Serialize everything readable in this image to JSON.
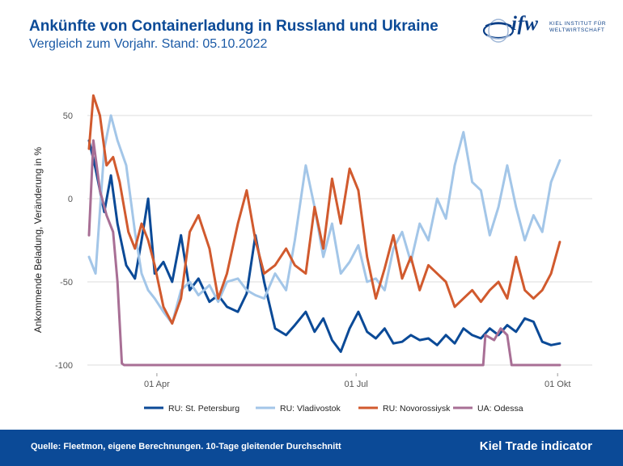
{
  "header": {
    "title": "Ankünfte von Containerladung in Russland und Ukraine",
    "subtitle": "Vergleich zum Vorjahr. Stand: 05.10.2022"
  },
  "logo": {
    "wordmark": "ifw",
    "line1": "KIEL INSTITUT FÜR",
    "line2": "WELTWIRTSCHAFT"
  },
  "footer": {
    "source": "Quelle: Fleetmon, eigene Berechnungen. 10-Tage gleitender Durchschnitt",
    "brand": "Kiel Trade indicator"
  },
  "colors": {
    "title": "#0b4a97",
    "footer_bg": "#0b4a97",
    "grid": "#dedede"
  },
  "chart_data": {
    "type": "line",
    "ylabel": "Ankommende Beladung, Veränderung in %",
    "xlabel": "",
    "x_range": [
      "2022-03-01",
      "2022-10-05"
    ],
    "ylim": [
      -105,
      65
    ],
    "y_ticks": [
      50,
      0,
      -50,
      -100
    ],
    "x_ticks": [
      {
        "date": "2022-04-01",
        "label": "01 Apr"
      },
      {
        "date": "2022-07-01",
        "label": "01 Jul"
      },
      {
        "date": "2022-10-01",
        "label": "01 Okt"
      }
    ],
    "grid": true,
    "legend_position": "bottom",
    "series": [
      {
        "name": "RU: St. Petersburg",
        "color": "#0b4a97",
        "points": [
          [
            "2022-03-01",
            35
          ],
          [
            "2022-03-04",
            18
          ],
          [
            "2022-03-08",
            -8
          ],
          [
            "2022-03-11",
            14
          ],
          [
            "2022-03-14",
            -15
          ],
          [
            "2022-03-18",
            -40
          ],
          [
            "2022-03-22",
            -48
          ],
          [
            "2022-03-25",
            -25
          ],
          [
            "2022-03-28",
            0
          ],
          [
            "2022-03-31",
            -45
          ],
          [
            "2022-04-04",
            -38
          ],
          [
            "2022-04-08",
            -50
          ],
          [
            "2022-04-12",
            -22
          ],
          [
            "2022-04-16",
            -55
          ],
          [
            "2022-04-20",
            -48
          ],
          [
            "2022-04-25",
            -62
          ],
          [
            "2022-04-29",
            -58
          ],
          [
            "2022-05-03",
            -65
          ],
          [
            "2022-05-08",
            -68
          ],
          [
            "2022-05-12",
            -57
          ],
          [
            "2022-05-16",
            -22
          ],
          [
            "2022-05-20",
            -50
          ],
          [
            "2022-05-25",
            -78
          ],
          [
            "2022-05-30",
            -82
          ],
          [
            "2022-06-03",
            -76
          ],
          [
            "2022-06-08",
            -68
          ],
          [
            "2022-06-12",
            -80
          ],
          [
            "2022-06-16",
            -72
          ],
          [
            "2022-06-20",
            -85
          ],
          [
            "2022-06-24",
            -92
          ],
          [
            "2022-06-28",
            -78
          ],
          [
            "2022-07-02",
            -68
          ],
          [
            "2022-07-06",
            -80
          ],
          [
            "2022-07-10",
            -84
          ],
          [
            "2022-07-14",
            -78
          ],
          [
            "2022-07-18",
            -87
          ],
          [
            "2022-07-22",
            -86
          ],
          [
            "2022-07-26",
            -82
          ],
          [
            "2022-07-30",
            -85
          ],
          [
            "2022-08-03",
            -84
          ],
          [
            "2022-08-07",
            -88
          ],
          [
            "2022-08-11",
            -82
          ],
          [
            "2022-08-15",
            -87
          ],
          [
            "2022-08-19",
            -78
          ],
          [
            "2022-08-23",
            -82
          ],
          [
            "2022-08-27",
            -84
          ],
          [
            "2022-08-31",
            -78
          ],
          [
            "2022-09-04",
            -82
          ],
          [
            "2022-09-08",
            -76
          ],
          [
            "2022-09-12",
            -80
          ],
          [
            "2022-09-16",
            -72
          ],
          [
            "2022-09-20",
            -74
          ],
          [
            "2022-09-24",
            -86
          ],
          [
            "2022-09-28",
            -88
          ],
          [
            "2022-10-02",
            -87
          ]
        ]
      },
      {
        "name": "RU: Vladivostok",
        "color": "#a3c6e8",
        "points": [
          [
            "2022-03-01",
            -35
          ],
          [
            "2022-03-04",
            -45
          ],
          [
            "2022-03-08",
            30
          ],
          [
            "2022-03-11",
            50
          ],
          [
            "2022-03-14",
            35
          ],
          [
            "2022-03-18",
            20
          ],
          [
            "2022-03-22",
            -20
          ],
          [
            "2022-03-25",
            -45
          ],
          [
            "2022-03-28",
            -55
          ],
          [
            "2022-03-31",
            -60
          ],
          [
            "2022-04-04",
            -68
          ],
          [
            "2022-04-08",
            -75
          ],
          [
            "2022-04-12",
            -55
          ],
          [
            "2022-04-16",
            -50
          ],
          [
            "2022-04-20",
            -58
          ],
          [
            "2022-04-25",
            -52
          ],
          [
            "2022-04-29",
            -62
          ],
          [
            "2022-05-03",
            -50
          ],
          [
            "2022-05-08",
            -48
          ],
          [
            "2022-05-12",
            -55
          ],
          [
            "2022-05-16",
            -58
          ],
          [
            "2022-05-20",
            -60
          ],
          [
            "2022-05-25",
            -45
          ],
          [
            "2022-05-30",
            -55
          ],
          [
            "2022-06-03",
            -25
          ],
          [
            "2022-06-08",
            20
          ],
          [
            "2022-06-12",
            -5
          ],
          [
            "2022-06-16",
            -35
          ],
          [
            "2022-06-20",
            -15
          ],
          [
            "2022-06-24",
            -45
          ],
          [
            "2022-06-28",
            -38
          ],
          [
            "2022-07-02",
            -28
          ],
          [
            "2022-07-06",
            -50
          ],
          [
            "2022-07-10",
            -48
          ],
          [
            "2022-07-14",
            -55
          ],
          [
            "2022-07-18",
            -30
          ],
          [
            "2022-07-22",
            -20
          ],
          [
            "2022-07-26",
            -38
          ],
          [
            "2022-07-30",
            -15
          ],
          [
            "2022-08-03",
            -25
          ],
          [
            "2022-08-07",
            0
          ],
          [
            "2022-08-11",
            -12
          ],
          [
            "2022-08-15",
            20
          ],
          [
            "2022-08-19",
            40
          ],
          [
            "2022-08-23",
            10
          ],
          [
            "2022-08-27",
            5
          ],
          [
            "2022-08-31",
            -22
          ],
          [
            "2022-09-04",
            -5
          ],
          [
            "2022-09-08",
            20
          ],
          [
            "2022-09-12",
            -5
          ],
          [
            "2022-09-16",
            -25
          ],
          [
            "2022-09-20",
            -10
          ],
          [
            "2022-09-24",
            -20
          ],
          [
            "2022-09-28",
            10
          ],
          [
            "2022-10-02",
            23
          ]
        ]
      },
      {
        "name": "RU: Novorossiysk",
        "color": "#d15a2e",
        "points": [
          [
            "2022-03-01",
            30
          ],
          [
            "2022-03-03",
            62
          ],
          [
            "2022-03-06",
            50
          ],
          [
            "2022-03-09",
            20
          ],
          [
            "2022-03-12",
            25
          ],
          [
            "2022-03-15",
            10
          ],
          [
            "2022-03-19",
            -20
          ],
          [
            "2022-03-22",
            -30
          ],
          [
            "2022-03-25",
            -15
          ],
          [
            "2022-03-28",
            -25
          ],
          [
            "2022-03-31",
            -40
          ],
          [
            "2022-04-04",
            -65
          ],
          [
            "2022-04-08",
            -75
          ],
          [
            "2022-04-12",
            -60
          ],
          [
            "2022-04-16",
            -20
          ],
          [
            "2022-04-20",
            -10
          ],
          [
            "2022-04-25",
            -30
          ],
          [
            "2022-04-29",
            -60
          ],
          [
            "2022-05-03",
            -45
          ],
          [
            "2022-05-08",
            -15
          ],
          [
            "2022-05-12",
            5
          ],
          [
            "2022-05-16",
            -25
          ],
          [
            "2022-05-20",
            -45
          ],
          [
            "2022-05-25",
            -40
          ],
          [
            "2022-05-30",
            -30
          ],
          [
            "2022-06-03",
            -40
          ],
          [
            "2022-06-08",
            -45
          ],
          [
            "2022-06-12",
            -5
          ],
          [
            "2022-06-16",
            -30
          ],
          [
            "2022-06-20",
            12
          ],
          [
            "2022-06-24",
            -15
          ],
          [
            "2022-06-28",
            18
          ],
          [
            "2022-07-02",
            5
          ],
          [
            "2022-07-06",
            -35
          ],
          [
            "2022-07-10",
            -60
          ],
          [
            "2022-07-14",
            -42
          ],
          [
            "2022-07-18",
            -22
          ],
          [
            "2022-07-22",
            -48
          ],
          [
            "2022-07-26",
            -35
          ],
          [
            "2022-07-30",
            -55
          ],
          [
            "2022-08-03",
            -40
          ],
          [
            "2022-08-07",
            -45
          ],
          [
            "2022-08-11",
            -50
          ],
          [
            "2022-08-15",
            -65
          ],
          [
            "2022-08-19",
            -60
          ],
          [
            "2022-08-23",
            -55
          ],
          [
            "2022-08-27",
            -62
          ],
          [
            "2022-08-31",
            -55
          ],
          [
            "2022-09-04",
            -50
          ],
          [
            "2022-09-08",
            -60
          ],
          [
            "2022-09-12",
            -35
          ],
          [
            "2022-09-16",
            -55
          ],
          [
            "2022-09-20",
            -60
          ],
          [
            "2022-09-24",
            -55
          ],
          [
            "2022-09-28",
            -45
          ],
          [
            "2022-10-02",
            -26
          ]
        ]
      },
      {
        "name": "UA: Odessa",
        "color": "#a86f95",
        "points": [
          [
            "2022-03-01",
            -22
          ],
          [
            "2022-03-03",
            35
          ],
          [
            "2022-03-06",
            5
          ],
          [
            "2022-03-09",
            -10
          ],
          [
            "2022-03-12",
            -20
          ],
          [
            "2022-03-14",
            -50
          ],
          [
            "2022-03-16",
            -99
          ],
          [
            "2022-03-17",
            -100
          ],
          [
            "2022-08-28",
            -100
          ],
          [
            "2022-08-29",
            -82
          ],
          [
            "2022-09-02",
            -85
          ],
          [
            "2022-09-05",
            -78
          ],
          [
            "2022-09-08",
            -82
          ],
          [
            "2022-09-10",
            -100
          ],
          [
            "2022-10-02",
            -100
          ]
        ]
      }
    ]
  }
}
